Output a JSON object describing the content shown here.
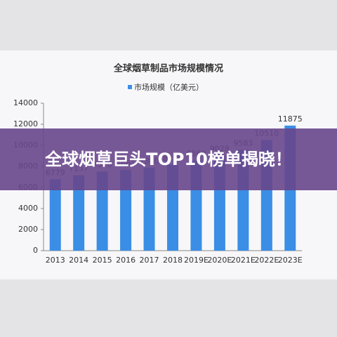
{
  "chart_data": {
    "type": "bar",
    "title": "全球烟草制品市场规模情况",
    "categories": [
      "2013",
      "2014",
      "2015",
      "2016",
      "2017",
      "2018",
      "2019E",
      "2020E",
      "2021E",
      "2022E",
      "2023E"
    ],
    "series": [
      {
        "name": "市场规模（亿美元）",
        "color": "#3a8ee6",
        "values": [
          6779,
          7157,
          7520,
          7661,
          7880,
          8150,
          8560,
          9028,
          9583,
          10510,
          11875
        ]
      }
    ],
    "ylim": [
      0,
      14000
    ],
    "yticks": [
      0,
      2000,
      4000,
      6000,
      8000,
      10000,
      12000,
      14000
    ]
  },
  "overlay_title": "全球烟草巨头TOP10榜单揭晓！"
}
